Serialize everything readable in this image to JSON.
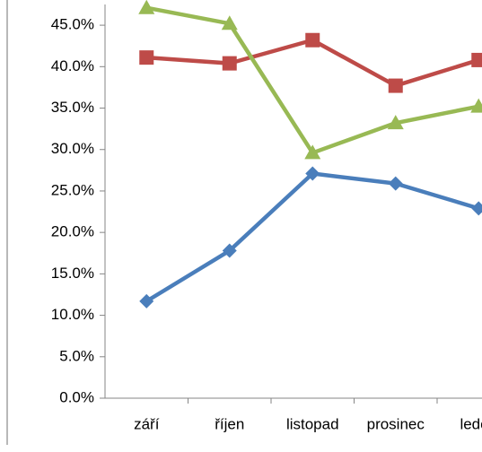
{
  "chart_data": {
    "type": "line",
    "categories": [
      "září",
      "říjen",
      "listopad",
      "prosinec",
      "leden"
    ],
    "series": [
      {
        "color": "#4a7ebb",
        "marker": "diamond",
        "values": [
          11.7,
          17.8,
          27.1,
          25.9,
          22.9
        ]
      },
      {
        "color": "#be4b48",
        "marker": "square",
        "values": [
          41.1,
          40.4,
          43.2,
          37.7,
          40.8
        ]
      },
      {
        "color": "#98b954",
        "marker": "triangle",
        "values": [
          47.1,
          45.2,
          29.6,
          33.2,
          35.2
        ]
      }
    ],
    "ylim": [
      0,
      47.5
    ],
    "yticks": [
      {
        "value": 0,
        "label": "0.0%"
      },
      {
        "value": 5,
        "label": "5.0%"
      },
      {
        "value": 10,
        "label": "10.0%"
      },
      {
        "value": 15,
        "label": "15.0%"
      },
      {
        "value": 20,
        "label": "20.0%"
      },
      {
        "value": 25,
        "label": "25.0%"
      },
      {
        "value": 30,
        "label": "30.0%"
      },
      {
        "value": 35,
        "label": "35.0%"
      },
      {
        "value": 40,
        "label": "40.0%"
      },
      {
        "value": 45,
        "label": "45.0%"
      }
    ]
  }
}
